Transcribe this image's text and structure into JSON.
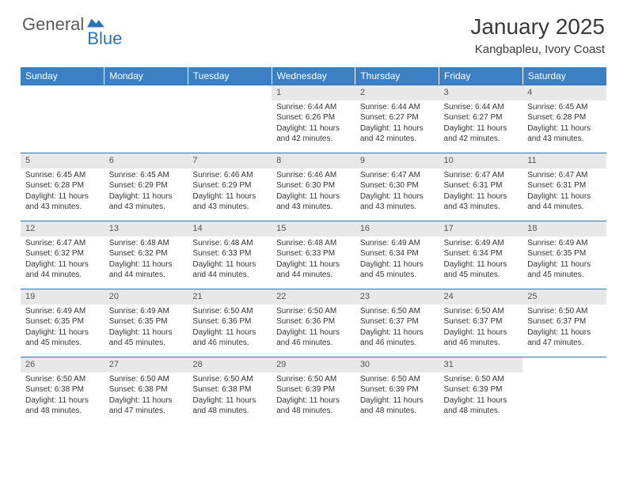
{
  "logo": {
    "word1": "General",
    "word2": "Blue"
  },
  "header": {
    "title": "January 2025",
    "location": "Kangbapleu, Ivory Coast"
  },
  "colors": {
    "header_bg": "#3b7fc4",
    "header_text": "#ffffff",
    "daynum_bg": "#e8e8e8",
    "daynum_text": "#555555",
    "border_line": "#2d72b5",
    "body_text": "#333333",
    "logo_gray": "#5a5a5a",
    "logo_blue": "#2d72b5"
  },
  "weekdays": [
    "Sunday",
    "Monday",
    "Tuesday",
    "Wednesday",
    "Thursday",
    "Friday",
    "Saturday"
  ],
  "weeks": [
    [
      {
        "n": "",
        "lines": [
          "",
          "",
          "",
          ""
        ]
      },
      {
        "n": "",
        "lines": [
          "",
          "",
          "",
          ""
        ]
      },
      {
        "n": "",
        "lines": [
          "",
          "",
          "",
          ""
        ]
      },
      {
        "n": "1",
        "lines": [
          "Sunrise: 6:44 AM",
          "Sunset: 6:26 PM",
          "Daylight: 11 hours",
          "and 42 minutes."
        ]
      },
      {
        "n": "2",
        "lines": [
          "Sunrise: 6:44 AM",
          "Sunset: 6:27 PM",
          "Daylight: 11 hours",
          "and 42 minutes."
        ]
      },
      {
        "n": "3",
        "lines": [
          "Sunrise: 6:44 AM",
          "Sunset: 6:27 PM",
          "Daylight: 11 hours",
          "and 42 minutes."
        ]
      },
      {
        "n": "4",
        "lines": [
          "Sunrise: 6:45 AM",
          "Sunset: 6:28 PM",
          "Daylight: 11 hours",
          "and 43 minutes."
        ]
      }
    ],
    [
      {
        "n": "5",
        "lines": [
          "Sunrise: 6:45 AM",
          "Sunset: 6:28 PM",
          "Daylight: 11 hours",
          "and 43 minutes."
        ]
      },
      {
        "n": "6",
        "lines": [
          "Sunrise: 6:45 AM",
          "Sunset: 6:29 PM",
          "Daylight: 11 hours",
          "and 43 minutes."
        ]
      },
      {
        "n": "7",
        "lines": [
          "Sunrise: 6:46 AM",
          "Sunset: 6:29 PM",
          "Daylight: 11 hours",
          "and 43 minutes."
        ]
      },
      {
        "n": "8",
        "lines": [
          "Sunrise: 6:46 AM",
          "Sunset: 6:30 PM",
          "Daylight: 11 hours",
          "and 43 minutes."
        ]
      },
      {
        "n": "9",
        "lines": [
          "Sunrise: 6:47 AM",
          "Sunset: 6:30 PM",
          "Daylight: 11 hours",
          "and 43 minutes."
        ]
      },
      {
        "n": "10",
        "lines": [
          "Sunrise: 6:47 AM",
          "Sunset: 6:31 PM",
          "Daylight: 11 hours",
          "and 43 minutes."
        ]
      },
      {
        "n": "11",
        "lines": [
          "Sunrise: 6:47 AM",
          "Sunset: 6:31 PM",
          "Daylight: 11 hours",
          "and 44 minutes."
        ]
      }
    ],
    [
      {
        "n": "12",
        "lines": [
          "Sunrise: 6:47 AM",
          "Sunset: 6:32 PM",
          "Daylight: 11 hours",
          "and 44 minutes."
        ]
      },
      {
        "n": "13",
        "lines": [
          "Sunrise: 6:48 AM",
          "Sunset: 6:32 PM",
          "Daylight: 11 hours",
          "and 44 minutes."
        ]
      },
      {
        "n": "14",
        "lines": [
          "Sunrise: 6:48 AM",
          "Sunset: 6:33 PM",
          "Daylight: 11 hours",
          "and 44 minutes."
        ]
      },
      {
        "n": "15",
        "lines": [
          "Sunrise: 6:48 AM",
          "Sunset: 6:33 PM",
          "Daylight: 11 hours",
          "and 44 minutes."
        ]
      },
      {
        "n": "16",
        "lines": [
          "Sunrise: 6:49 AM",
          "Sunset: 6:34 PM",
          "Daylight: 11 hours",
          "and 45 minutes."
        ]
      },
      {
        "n": "17",
        "lines": [
          "Sunrise: 6:49 AM",
          "Sunset: 6:34 PM",
          "Daylight: 11 hours",
          "and 45 minutes."
        ]
      },
      {
        "n": "18",
        "lines": [
          "Sunrise: 6:49 AM",
          "Sunset: 6:35 PM",
          "Daylight: 11 hours",
          "and 45 minutes."
        ]
      }
    ],
    [
      {
        "n": "19",
        "lines": [
          "Sunrise: 6:49 AM",
          "Sunset: 6:35 PM",
          "Daylight: 11 hours",
          "and 45 minutes."
        ]
      },
      {
        "n": "20",
        "lines": [
          "Sunrise: 6:49 AM",
          "Sunset: 6:35 PM",
          "Daylight: 11 hours",
          "and 45 minutes."
        ]
      },
      {
        "n": "21",
        "lines": [
          "Sunrise: 6:50 AM",
          "Sunset: 6:36 PM",
          "Daylight: 11 hours",
          "and 46 minutes."
        ]
      },
      {
        "n": "22",
        "lines": [
          "Sunrise: 6:50 AM",
          "Sunset: 6:36 PM",
          "Daylight: 11 hours",
          "and 46 minutes."
        ]
      },
      {
        "n": "23",
        "lines": [
          "Sunrise: 6:50 AM",
          "Sunset: 6:37 PM",
          "Daylight: 11 hours",
          "and 46 minutes."
        ]
      },
      {
        "n": "24",
        "lines": [
          "Sunrise: 6:50 AM",
          "Sunset: 6:37 PM",
          "Daylight: 11 hours",
          "and 46 minutes."
        ]
      },
      {
        "n": "25",
        "lines": [
          "Sunrise: 6:50 AM",
          "Sunset: 6:37 PM",
          "Daylight: 11 hours",
          "and 47 minutes."
        ]
      }
    ],
    [
      {
        "n": "26",
        "lines": [
          "Sunrise: 6:50 AM",
          "Sunset: 6:38 PM",
          "Daylight: 11 hours",
          "and 48 minutes."
        ]
      },
      {
        "n": "27",
        "lines": [
          "Sunrise: 6:50 AM",
          "Sunset: 6:38 PM",
          "Daylight: 11 hours",
          "and 47 minutes."
        ]
      },
      {
        "n": "28",
        "lines": [
          "Sunrise: 6:50 AM",
          "Sunset: 6:38 PM",
          "Daylight: 11 hours",
          "and 48 minutes."
        ]
      },
      {
        "n": "29",
        "lines": [
          "Sunrise: 6:50 AM",
          "Sunset: 6:39 PM",
          "Daylight: 11 hours",
          "and 48 minutes."
        ]
      },
      {
        "n": "30",
        "lines": [
          "Sunrise: 6:50 AM",
          "Sunset: 6:39 PM",
          "Daylight: 11 hours",
          "and 48 minutes."
        ]
      },
      {
        "n": "31",
        "lines": [
          "Sunrise: 6:50 AM",
          "Sunset: 6:39 PM",
          "Daylight: 11 hours",
          "and 48 minutes."
        ]
      },
      {
        "n": "",
        "lines": [
          "",
          "",
          "",
          ""
        ]
      }
    ]
  ]
}
